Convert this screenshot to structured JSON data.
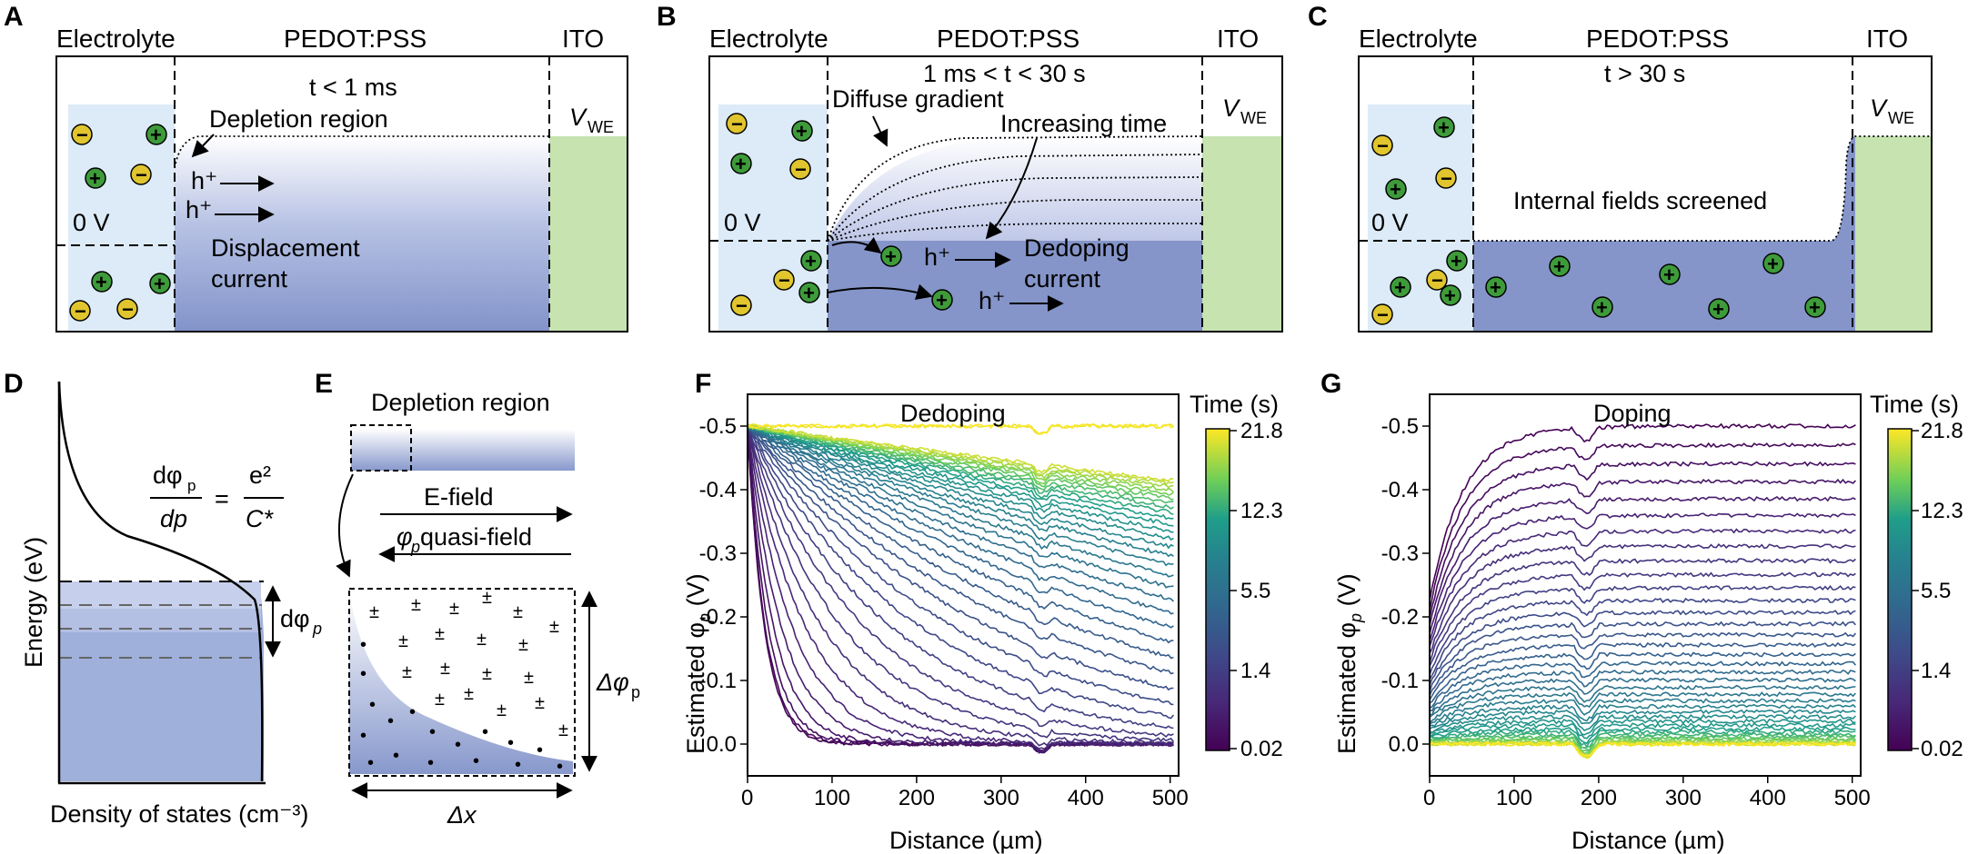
{
  "panels": {
    "A": {
      "label": "A",
      "headers": [
        "Electrolyte",
        "PEDOT:PSS",
        "ITO"
      ],
      "time": "t < 1 ms",
      "depletion": "Depletion region",
      "zero_v": "0 V",
      "vwe": "V",
      "vwe_sub": "WE",
      "hplus": "h⁺",
      "current_1": "Displacement",
      "current_2": "current"
    },
    "B": {
      "label": "B",
      "headers": [
        "Electrolyte",
        "PEDOT:PSS",
        "ITO"
      ],
      "time": "1 ms < t < 30 s",
      "diffuse": "Diffuse gradient",
      "increasing": "Increasing time",
      "zero_v": "0 V",
      "vwe": "V",
      "vwe_sub": "WE",
      "hplus": "h⁺",
      "current_1": "Dedoping",
      "current_2": "current"
    },
    "C": {
      "label": "C",
      "headers": [
        "Electrolyte",
        "PEDOT:PSS",
        "ITO"
      ],
      "time": "t > 30 s",
      "screened": "Internal fields screened",
      "zero_v": "0 V",
      "vwe": "V",
      "vwe_sub": "WE"
    },
    "D": {
      "label": "D",
      "ylabel": "Energy (eV)",
      "xlabel": "Density of states (cm⁻³)",
      "eq_num": "dφ",
      "eq_sub": "p",
      "eq_den": "dp",
      "eq_rhs_num": "e²",
      "eq_rhs_den": "C*",
      "eq_equals": "=",
      "dphi": "dφ",
      "dphi_sub": "p"
    },
    "E": {
      "label": "E",
      "depletion": "Depletion region",
      "efield": "E-field",
      "quasi": "φ",
      "quasi_sub": "p",
      "quasi_rest": " quasi-field",
      "dphi": "Δφ",
      "dphi_sub": "p",
      "dx": "Δx"
    },
    "F": {
      "label": "F",
      "title": "Dedoping",
      "ylabel": "Estimated φ",
      "ylabel_sub": "p",
      "ylabel_unit": " (V)",
      "xlabel": "Distance (µm)",
      "cbar_title": "Time (s)",
      "cbar_ticks": [
        "21.8",
        "12.3",
        "5.5",
        "1.4",
        "0.02"
      ]
    },
    "G": {
      "label": "G",
      "title": "Doping",
      "ylabel": "Estimated φ",
      "ylabel_sub": "p",
      "ylabel_unit": " (V)",
      "xlabel": "Distance (µm)",
      "cbar_title": "Time (s)",
      "cbar_ticks": [
        "21.8",
        "12.3",
        "5.5",
        "1.4",
        "0.02"
      ]
    }
  },
  "colors": {
    "electrolyte": "#dcebf7",
    "pedot": "#8c9fd0",
    "ito": "#c6e3b0",
    "cation": "#3e9b3a",
    "anion": "#e0c52e",
    "dos": "#9fb0da"
  },
  "chart_data": [
    {
      "type": "line",
      "panel": "F",
      "title": "Dedoping",
      "xlabel": "Distance (µm)",
      "ylabel": "Estimated φp (V)",
      "xlim": [
        0,
        510
      ],
      "ylim": [
        0.05,
        -0.55
      ],
      "xticks": [
        0,
        100,
        200,
        300,
        400,
        500
      ],
      "yticks": [
        0.0,
        -0.1,
        -0.2,
        -0.3,
        -0.4,
        -0.5
      ],
      "colorbar": {
        "label": "Time (s)",
        "min": 0.02,
        "max": 21.8,
        "ticks": [
          0.02,
          1.4,
          5.5,
          12.3,
          21.8
        ],
        "colormap": "viridis"
      },
      "series_count": 40,
      "description_of_shape": "Curves start near 0 V on the right and rise to -0.5 V near x=0; with increasing time the curves approach -0.5 V across the film."
    },
    {
      "type": "line",
      "panel": "G",
      "title": "Doping",
      "xlabel": "Distance (µm)",
      "ylabel": "Estimated φp (V)",
      "xlim": [
        0,
        510
      ],
      "ylim": [
        0.05,
        -0.55
      ],
      "xticks": [
        0,
        100,
        200,
        300,
        400,
        500
      ],
      "yticks": [
        0.0,
        -0.1,
        -0.2,
        -0.3,
        -0.4,
        -0.5
      ],
      "colorbar": {
        "label": "Time (s)",
        "min": 0.02,
        "max": 21.8,
        "ticks": [
          0.02,
          1.4,
          5.5,
          12.3,
          21.8
        ],
        "colormap": "viridis"
      },
      "series_count": 40,
      "description_of_shape": "Earliest curves sit near -0.5 V; with increasing time curves relax toward 0 V across the film."
    }
  ],
  "axis_ticks": {
    "x": [
      "0",
      "100",
      "200",
      "300",
      "400",
      "500"
    ],
    "y": [
      "-0.5",
      "-0.4",
      "-0.3",
      "-0.2",
      "-0.1",
      "0.0"
    ]
  }
}
